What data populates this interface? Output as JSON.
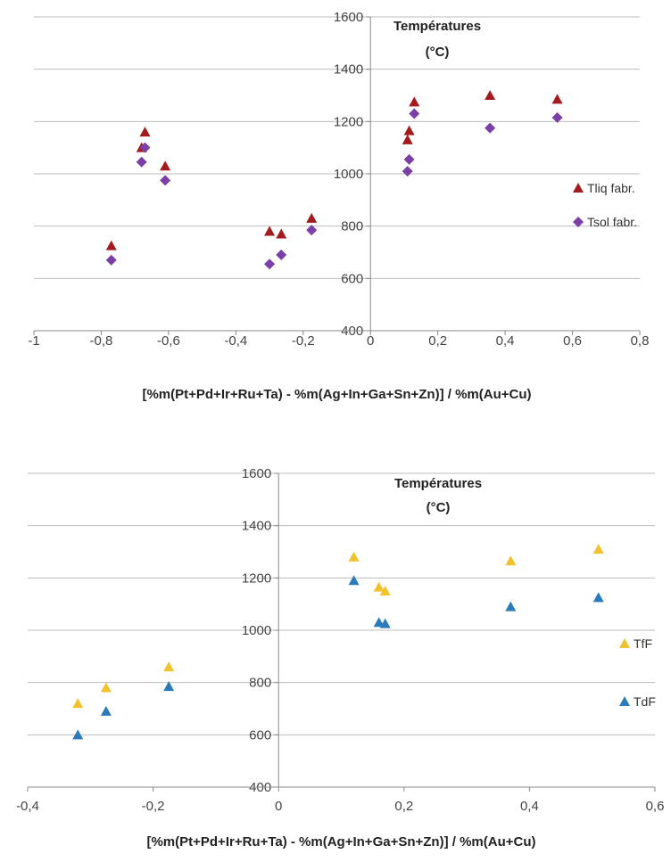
{
  "chart_data": [
    {
      "type": "scatter",
      "xlabel": "[%m(Pt+Pd+Ir+Ru+Ta)  - %m(Ag+In+Ga+Sn+Zn)]  / %m(Au+Cu)",
      "ylabel": "",
      "annotation": [
        "Températures",
        "(°C)"
      ],
      "xlim": [
        -1,
        0.8
      ],
      "ylim": [
        400,
        1600
      ],
      "x_ticks": [
        "-1",
        "-0,8",
        "-0,6",
        "-0,4",
        "-0,2",
        "0",
        "0,2",
        "0,4",
        "0,6",
        "0,8"
      ],
      "y_ticks": [
        "400",
        "600",
        "800",
        "1000",
        "1200",
        "1400",
        "1600"
      ],
      "grid": "horizontal",
      "legend": "right",
      "series": [
        {
          "name": "Tliq fabr.",
          "marker": "triangle",
          "color": "#A31A1F",
          "points": [
            {
              "x": -0.77,
              "y": 725
            },
            {
              "x": -0.68,
              "y": 1100
            },
            {
              "x": -0.67,
              "y": 1160
            },
            {
              "x": -0.61,
              "y": 1030
            },
            {
              "x": -0.3,
              "y": 780
            },
            {
              "x": -0.265,
              "y": 770
            },
            {
              "x": -0.175,
              "y": 830
            },
            {
              "x": 0.11,
              "y": 1130
            },
            {
              "x": 0.115,
              "y": 1165
            },
            {
              "x": 0.13,
              "y": 1275
            },
            {
              "x": 0.355,
              "y": 1300
            },
            {
              "x": 0.555,
              "y": 1285
            }
          ]
        },
        {
          "name": "Tsol fabr.",
          "marker": "diamond",
          "color": "#7B3FA8",
          "points": [
            {
              "x": -0.77,
              "y": 670
            },
            {
              "x": -0.68,
              "y": 1045
            },
            {
              "x": -0.67,
              "y": 1100
            },
            {
              "x": -0.61,
              "y": 975
            },
            {
              "x": -0.3,
              "y": 655
            },
            {
              "x": -0.265,
              "y": 690
            },
            {
              "x": -0.175,
              "y": 785
            },
            {
              "x": 0.11,
              "y": 1010
            },
            {
              "x": 0.115,
              "y": 1055
            },
            {
              "x": 0.13,
              "y": 1230
            },
            {
              "x": 0.355,
              "y": 1175
            },
            {
              "x": 0.555,
              "y": 1215
            }
          ]
        }
      ]
    },
    {
      "type": "scatter",
      "xlabel": "[%m(Pt+Pd+Ir+Ru+Ta)  - %m(Ag+In+Ga+Sn+Zn)]  / %m(Au+Cu)",
      "ylabel": "",
      "annotation": [
        "Températures",
        "(°C)"
      ],
      "xlim": [
        -0.4,
        0.6
      ],
      "ylim": [
        400,
        1600
      ],
      "x_ticks": [
        "-0,4",
        "-0,2",
        "0",
        "0,2",
        "0,4",
        "0,6"
      ],
      "y_ticks": [
        "400",
        "600",
        "800",
        "1000",
        "1200",
        "1400",
        "1600"
      ],
      "grid": "horizontal",
      "legend": "right",
      "series": [
        {
          "name": "TfF",
          "marker": "triangle",
          "color": "#F2C12E",
          "points": [
            {
              "x": -0.32,
              "y": 720
            },
            {
              "x": -0.275,
              "y": 780
            },
            {
              "x": -0.175,
              "y": 860
            },
            {
              "x": 0.12,
              "y": 1280
            },
            {
              "x": 0.16,
              "y": 1165
            },
            {
              "x": 0.17,
              "y": 1150
            },
            {
              "x": 0.37,
              "y": 1265
            },
            {
              "x": 0.51,
              "y": 1310
            }
          ]
        },
        {
          "name": "TdF",
          "marker": "triangle",
          "color": "#2B7BBA",
          "points": [
            {
              "x": -0.32,
              "y": 600
            },
            {
              "x": -0.275,
              "y": 690
            },
            {
              "x": -0.175,
              "y": 785
            },
            {
              "x": 0.12,
              "y": 1190
            },
            {
              "x": 0.16,
              "y": 1030
            },
            {
              "x": 0.17,
              "y": 1025
            },
            {
              "x": 0.37,
              "y": 1090
            },
            {
              "x": 0.51,
              "y": 1125
            }
          ]
        }
      ]
    }
  ]
}
